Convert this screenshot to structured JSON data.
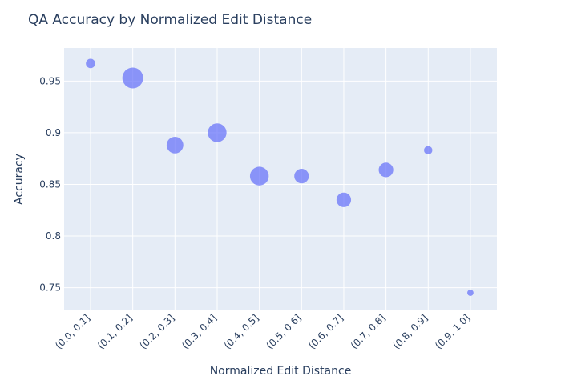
{
  "chart_data": {
    "type": "scatter",
    "title": "QA Accuracy by Normalized Edit Distance",
    "xlabel": "Normalized Edit Distance",
    "ylabel": "Accuracy",
    "categories": [
      "(0.0, 0.1]",
      "(0.1, 0.2]",
      "(0.2, 0.3]",
      "(0.3, 0.4]",
      "(0.4, 0.5]",
      "(0.5, 0.6]",
      "(0.6, 0.7]",
      "(0.7, 0.8]",
      "(0.8, 0.9]",
      "(0.9, 1.0]"
    ],
    "values": [
      0.967,
      0.953,
      0.888,
      0.9,
      0.858,
      0.858,
      0.835,
      0.864,
      0.883,
      0.745
    ],
    "marker_size_relative": [
      0.45,
      1.0,
      0.8,
      0.9,
      0.9,
      0.7,
      0.7,
      0.7,
      0.4,
      0.3
    ],
    "yticks": [
      0.75,
      0.8,
      0.85,
      0.9,
      0.95
    ],
    "ytick_labels": [
      "0.75",
      "0.8",
      "0.85",
      "0.9",
      "0.95"
    ],
    "ylim": [
      0.728,
      0.982
    ],
    "grid": true,
    "colors": {
      "marker": "#636efa",
      "plot_bg": "#e5ecf6",
      "text": "#2a3f5f"
    }
  }
}
